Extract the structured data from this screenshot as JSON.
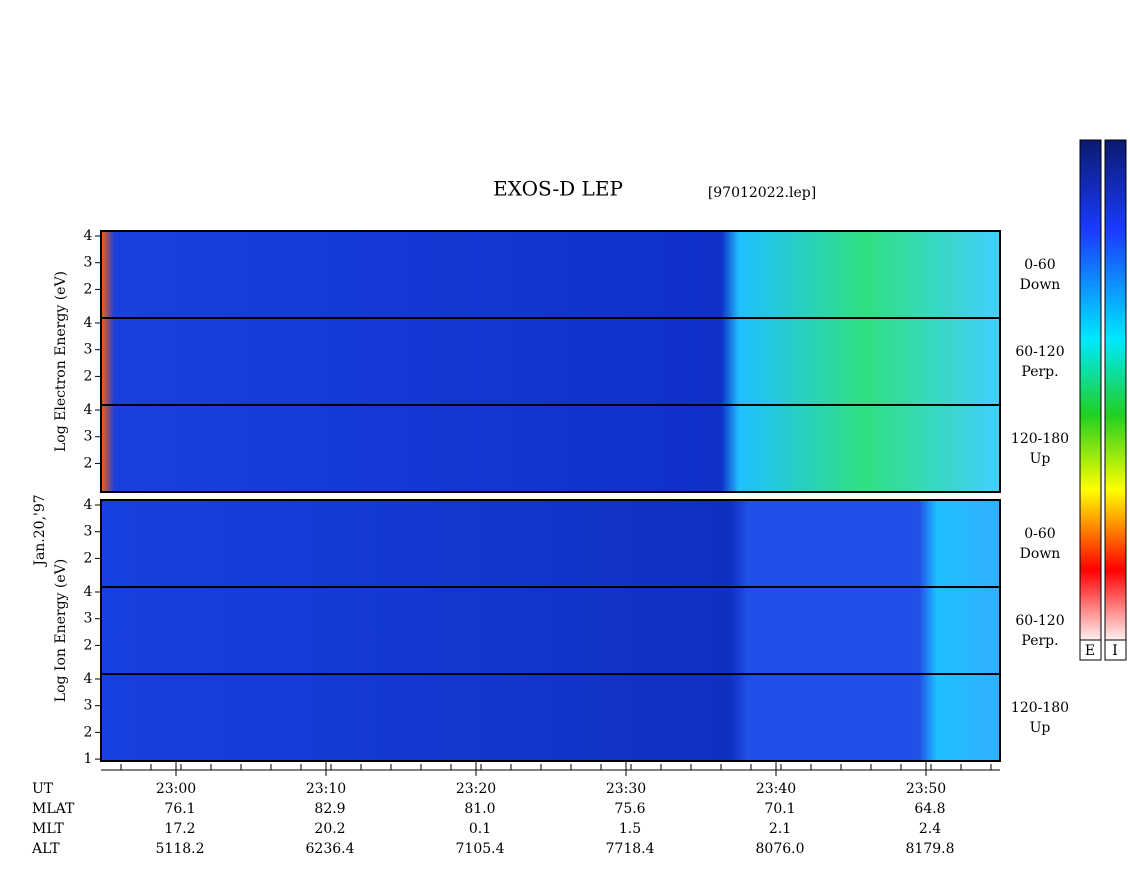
{
  "header": {
    "title": "EXOS-D LEP",
    "file": "[97012022.lep]"
  },
  "date": "Jan.20,'97",
  "groups": [
    {
      "label": "Log Electron Energy (eV)",
      "panels": [
        {
          "angle": "0-60",
          "direction": "Down",
          "ticks": [
            4,
            3,
            2
          ]
        },
        {
          "angle": "60-120",
          "direction": "Perp.",
          "ticks": [
            4,
            3,
            2
          ]
        },
        {
          "angle": "120-180",
          "direction": "Up",
          "ticks": [
            4,
            3,
            2
          ]
        }
      ]
    },
    {
      "label": "Log Ion Energy (eV)",
      "panels": [
        {
          "angle": "0-60",
          "direction": "Down",
          "ticks": [
            4,
            3,
            2
          ]
        },
        {
          "angle": "60-120",
          "direction": "Perp.",
          "ticks": [
            4,
            3,
            2
          ]
        },
        {
          "angle": "120-180",
          "direction": "Up",
          "ticks": [
            4,
            3,
            2,
            1
          ]
        }
      ]
    }
  ],
  "ephemeris": {
    "rows": [
      {
        "label": "UT",
        "values": [
          "23:00",
          "23:10",
          "23:20",
          "23:30",
          "23:40",
          "23:50"
        ]
      },
      {
        "label": "MLAT",
        "values": [
          "76.1",
          "82.9",
          "81.0",
          "75.6",
          "70.1",
          "64.8"
        ]
      },
      {
        "label": "MLT",
        "values": [
          "17.2",
          "20.2",
          "0.1",
          "1.5",
          "2.1",
          "2.4"
        ]
      },
      {
        "label": "ALT",
        "values": [
          "5118.2",
          "6236.4",
          "7105.4",
          "7718.4",
          "8076.0",
          "8179.8"
        ]
      }
    ]
  },
  "colorbar": {
    "labels": [
      "E",
      "I"
    ]
  }
}
